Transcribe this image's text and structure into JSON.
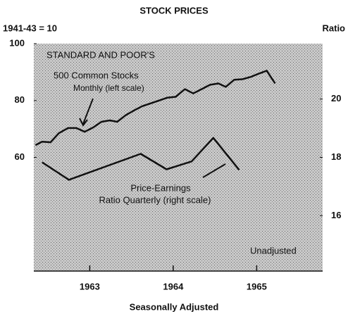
{
  "chart_data": {
    "type": "line",
    "title": "STOCK PRICES",
    "y_label": "1941-43 = 10",
    "y2_label": "Ratio",
    "x_label": "Seasonally Adjusted",
    "annotations": [
      "STANDARD AND POOR'S",
      "500 Common Stocks",
      "Monthly (left scale)",
      "Price-Earnings",
      "Ratio Quarterly (right scale)",
      "Unadjusted"
    ],
    "xlim": [
      1962.83,
      1966.29
    ],
    "xticks": [
      {
        "value": 1963.5,
        "label": "1963"
      },
      {
        "value": 1964.5,
        "label": "1964"
      },
      {
        "value": 1965.5,
        "label": "1965"
      }
    ],
    "ylim": [
      20,
      100
    ],
    "yticks": [
      60,
      80,
      100
    ],
    "y2lim": [
      14.1,
      21.9
    ],
    "y2ticks": [
      16,
      18,
      20
    ],
    "series": [
      {
        "name": "500 Common Stocks Monthly (left scale)",
        "color": "#111111",
        "x": [
          1962.85,
          1962.93,
          1963.03,
          1963.13,
          1963.24,
          1963.34,
          1963.44,
          1963.54,
          1963.64,
          1963.74,
          1963.83,
          1963.93,
          1964.03,
          1964.13,
          1964.23,
          1964.33,
          1964.43,
          1964.53,
          1964.64,
          1964.74,
          1964.84,
          1964.94,
          1965.04,
          1965.13,
          1965.23,
          1965.33,
          1965.43,
          1965.53,
          1965.62,
          1965.72
        ],
        "values": [
          64.3,
          65.5,
          65.3,
          68.5,
          70.3,
          70.3,
          69,
          70.5,
          72.5,
          73,
          72.5,
          74.8,
          76.5,
          78,
          79,
          80,
          81,
          81.3,
          84,
          82.5,
          84,
          85.5,
          86,
          84.8,
          87.3,
          87.5,
          88.3,
          89.5,
          90.5,
          86
        ]
      },
      {
        "name": "Price-Earnings Ratio Quarterly (right scale)",
        "color": "#111111",
        "axis": "y2",
        "x": [
          1962.93,
          1963.25,
          1964.11,
          1964.42,
          1964.72,
          1964.98,
          1965.29
        ],
        "values": [
          17.83,
          17.23,
          18.12,
          17.59,
          17.86,
          18.67,
          17.57
        ]
      }
    ]
  }
}
